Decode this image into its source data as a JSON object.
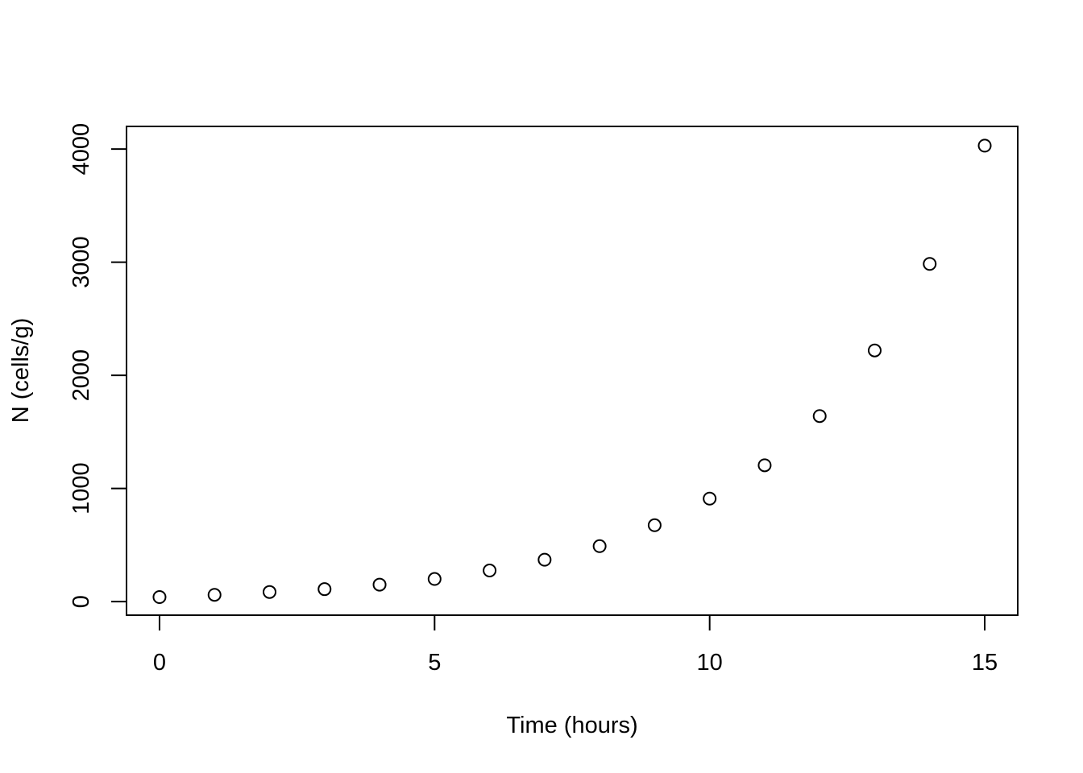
{
  "chart_data": {
    "type": "scatter",
    "title": "",
    "xlabel": "Time (hours)",
    "ylabel": "N (cells/g)",
    "xlim": [
      -0.6,
      15.6
    ],
    "ylim": [
      -120,
      4200
    ],
    "x_ticks": [
      0,
      5,
      10,
      15
    ],
    "x_tick_labels": [
      "0",
      "5",
      "10",
      "15"
    ],
    "y_ticks": [
      0,
      1000,
      2000,
      3000,
      4000
    ],
    "y_tick_labels": [
      "0",
      "1000",
      "2000",
      "3000",
      "4000"
    ],
    "grid": false,
    "marker": "open-circle",
    "marker_color": "#000000",
    "x": [
      0,
      1,
      2,
      3,
      4,
      5,
      6,
      7,
      8,
      9,
      10,
      11,
      12,
      13,
      14,
      15
    ],
    "y": [
      40,
      60,
      85,
      110,
      150,
      200,
      275,
      370,
      490,
      675,
      910,
      1205,
      1640,
      2220,
      2985,
      4030
    ]
  }
}
